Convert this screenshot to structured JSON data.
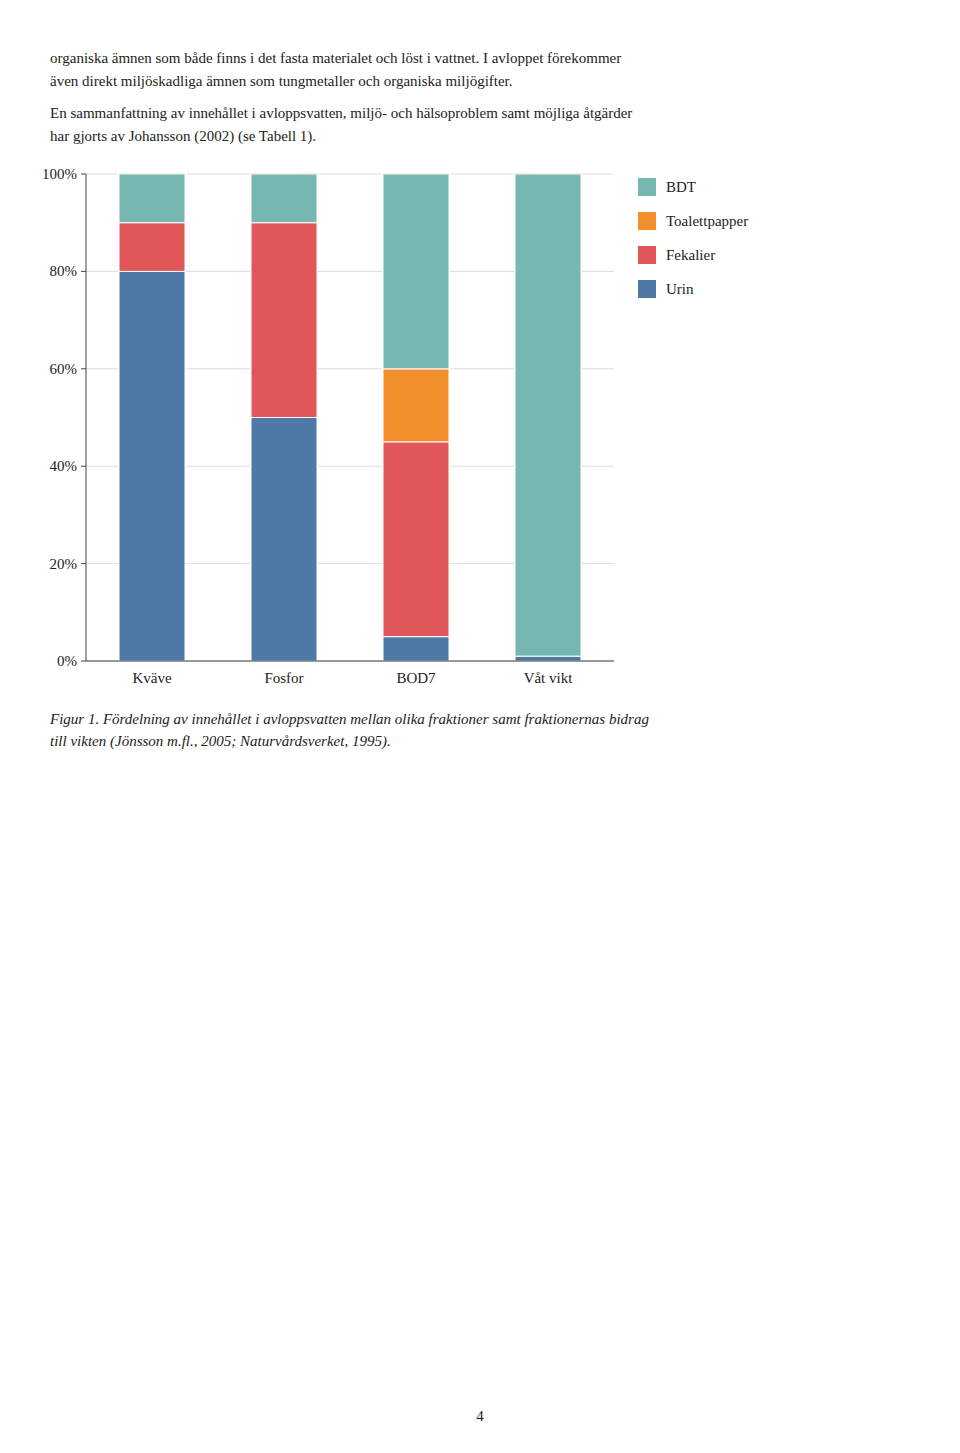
{
  "chart_data": {
    "type": "bar",
    "categories": [
      "Kväve",
      "Fosfor",
      "BOD7",
      "Våt vikt"
    ],
    "series": [
      {
        "name": "Urin",
        "color": "#4e79a7",
        "values": [
          80,
          50,
          5,
          1
        ]
      },
      {
        "name": "Fekalier",
        "color": "#e15759",
        "values": [
          10,
          40,
          40,
          0
        ]
      },
      {
        "name": "Toalettpapper",
        "color": "#f28e2b",
        "values": [
          0,
          0,
          15,
          0
        ]
      },
      {
        "name": "BDT",
        "color": "#76b7b2",
        "values": [
          10,
          10,
          40,
          99
        ]
      }
    ],
    "stacked": true,
    "ylim": [
      0,
      100
    ],
    "yticks": [
      {
        "value": 0,
        "label": "0%"
      },
      {
        "value": 20,
        "label": "20%"
      },
      {
        "value": 40,
        "label": "40%"
      },
      {
        "value": 60,
        "label": "60%"
      },
      {
        "value": 80,
        "label": "80%"
      },
      {
        "value": 100,
        "label": "100%"
      }
    ],
    "grid": true,
    "legend": "right",
    "annotations": [
      "organiska ämnen som både finns i det fasta materialet och löst i vattnet. I avloppet förekommer",
      "även direkt miljöskadliga ämnen som tungmetaller och organiska miljögifter.",
      "En sammanfattning av innehållet i avloppsvatten, miljö- och hälsoproblem samt möjliga åtgärder",
      "har gjorts av Johansson (2002) (se Tabell 1).",
      "Figur 1. Fördelning av innehållet i avloppsvatten mellan olika fraktioner samt fraktionernas bidrag",
      "till vikten (Jönsson m.fl., 2005; Naturvårdsverket, 1995).",
      "4"
    ]
  }
}
